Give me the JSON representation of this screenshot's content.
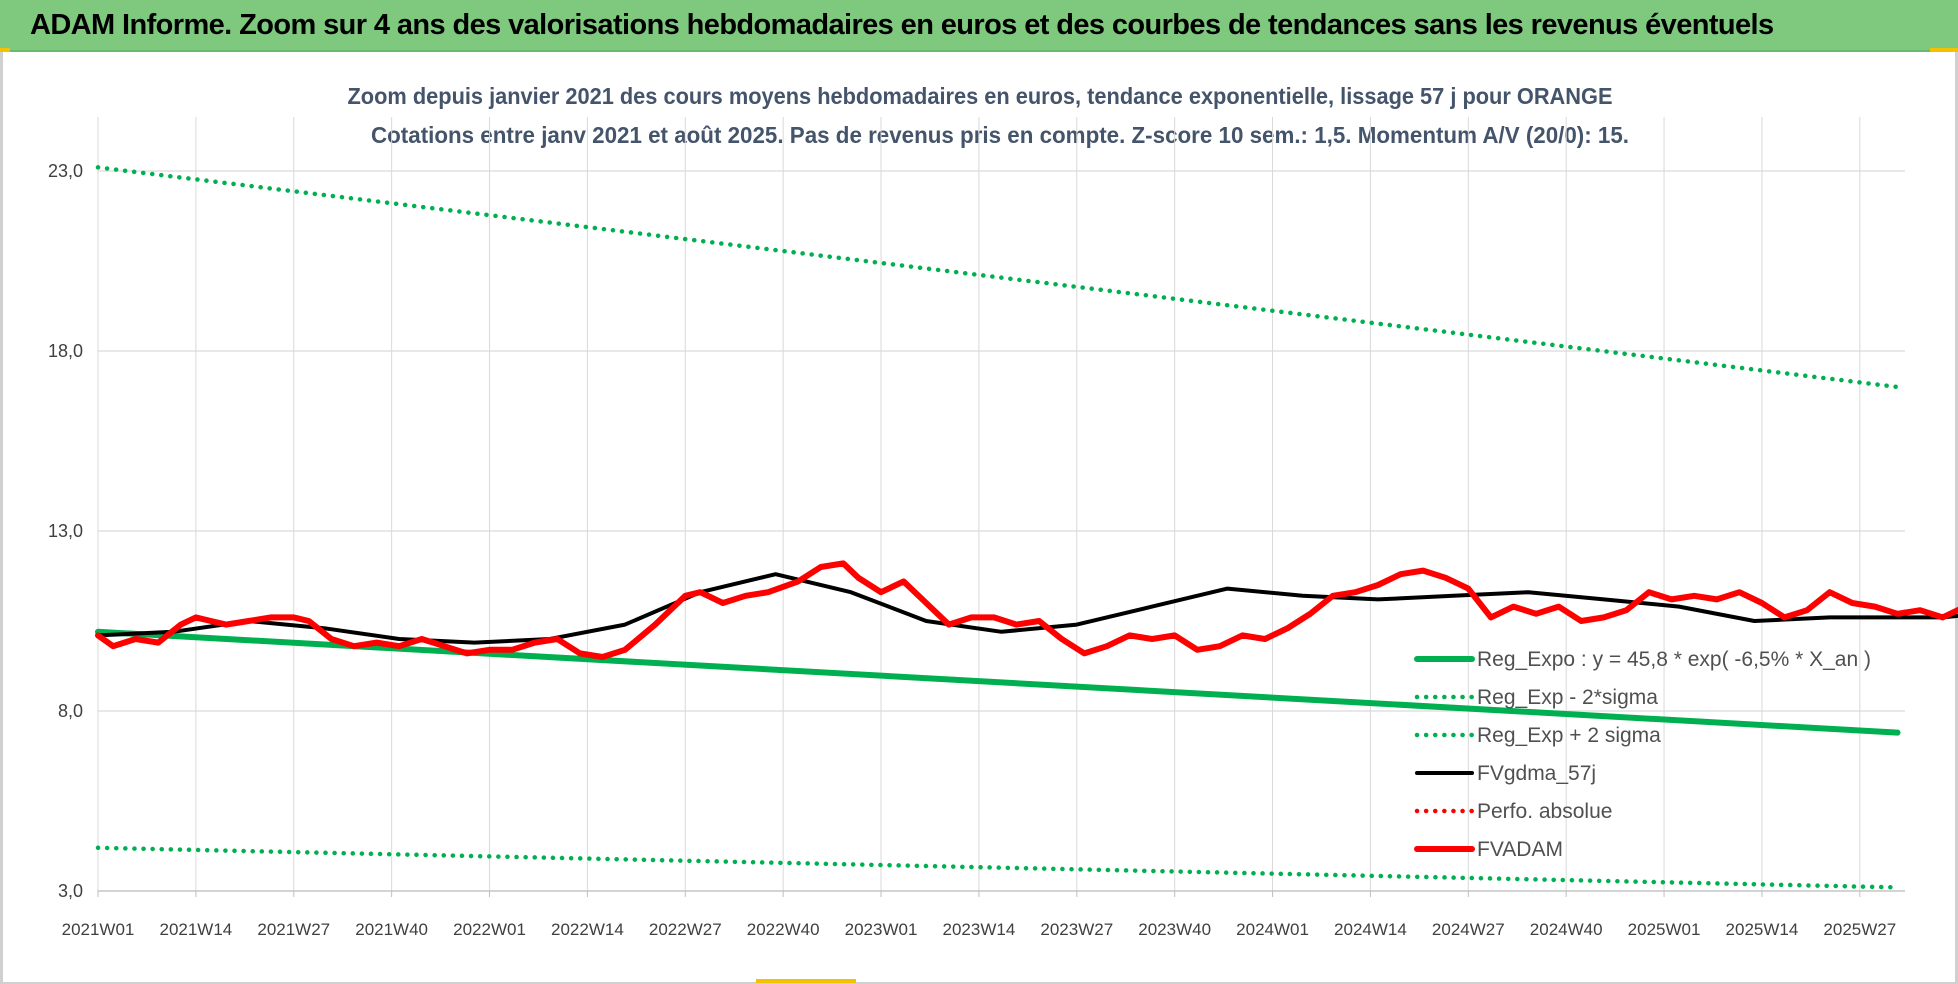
{
  "banner": {
    "title": "ADAM Informe. Zoom sur 4 ans des valorisations hebdomadaires en euros et des courbes de tendances sans les revenus éventuels"
  },
  "colors": {
    "banner_bg": "#7fc97f",
    "green": "#00b050",
    "black": "#000000",
    "red": "#ff0000",
    "subtitle": "#44546a",
    "grid": "#d9d9d9"
  },
  "chart_data": {
    "type": "line",
    "title_line1": "Zoom depuis janvier 2021 des cours moyens hebdomadaires en euros, tendance exponentielle, lissage 57 j pour ORANGE",
    "title_line2": "Cotations entre janv 2021 et août 2025.  Pas de revenus pris en compte. Z-score 10 sem.: 1,5. Momentum A/V (20/0): 15.",
    "x_tick_labels": [
      "2021W01",
      "2021W14",
      "2021W27",
      "2021W40",
      "2022W01",
      "2022W14",
      "2022W27",
      "2022W40",
      "2023W01",
      "2023W14",
      "2023W27",
      "2023W40",
      "2024W01",
      "2024W14",
      "2024W27",
      "2024W40",
      "2025W01",
      "2025W14",
      "2025W27"
    ],
    "y_ticks": [
      "3,0",
      "8,0",
      "13,0",
      "18,0",
      "23,0"
    ],
    "ylim": [
      3,
      24.5
    ],
    "x_weeks": 240,
    "grid": true,
    "legend_position": "bottom-right",
    "series": [
      {
        "name": "Reg_Expo : y = 45,8 * exp( -6,5% *  X_an )",
        "style": "solid",
        "color": "#00b050",
        "points": [
          [
            0,
            10.2
          ],
          [
            239,
            7.4
          ]
        ]
      },
      {
        "name": "Reg_Exp - 2*sigma",
        "style": "dotted",
        "color": "#00b050",
        "points": [
          [
            0,
            4.2
          ],
          [
            239,
            3.1
          ]
        ]
      },
      {
        "name": "Reg_Exp + 2 sigma",
        "style": "dotted",
        "color": "#00b050",
        "points": [
          [
            0,
            23.1
          ],
          [
            239,
            17.0
          ]
        ]
      },
      {
        "name": "FVgdma_57j",
        "style": "solid",
        "color": "#000000",
        "points": [
          [
            0,
            10.1
          ],
          [
            10,
            10.2
          ],
          [
            20,
            10.5
          ],
          [
            30,
            10.3
          ],
          [
            40,
            10.0
          ],
          [
            50,
            9.9
          ],
          [
            60,
            10.0
          ],
          [
            70,
            10.4
          ],
          [
            80,
            11.3
          ],
          [
            90,
            11.8
          ],
          [
            100,
            11.3
          ],
          [
            110,
            10.5
          ],
          [
            120,
            10.2
          ],
          [
            130,
            10.4
          ],
          [
            140,
            10.9
          ],
          [
            150,
            11.4
          ],
          [
            160,
            11.2
          ],
          [
            170,
            11.1
          ],
          [
            180,
            11.2
          ],
          [
            190,
            11.3
          ],
          [
            200,
            11.1
          ],
          [
            210,
            10.9
          ],
          [
            220,
            10.5
          ],
          [
            230,
            10.6
          ],
          [
            245,
            10.6
          ],
          [
            255,
            10.8
          ],
          [
            260,
            11.3
          ],
          [
            265,
            11.9
          ],
          [
            272,
            12.6
          ],
          [
            279,
            12.9
          ]
        ]
      },
      {
        "name": "Perfo. absolue",
        "style": "dotted",
        "color": "#ff0000",
        "points": []
      },
      {
        "name": "FVADAM",
        "style": "solid",
        "color": "#ff0000",
        "points": [
          [
            0,
            10.1
          ],
          [
            2,
            9.8
          ],
          [
            5,
            10.0
          ],
          [
            8,
            9.9
          ],
          [
            11,
            10.4
          ],
          [
            13,
            10.6
          ],
          [
            15,
            10.5
          ],
          [
            17,
            10.4
          ],
          [
            20,
            10.5
          ],
          [
            23,
            10.6
          ],
          [
            26,
            10.6
          ],
          [
            28,
            10.5
          ],
          [
            31,
            10.0
          ],
          [
            34,
            9.8
          ],
          [
            37,
            9.9
          ],
          [
            40,
            9.8
          ],
          [
            43,
            10.0
          ],
          [
            46,
            9.8
          ],
          [
            49,
            9.6
          ],
          [
            52,
            9.7
          ],
          [
            55,
            9.7
          ],
          [
            58,
            9.9
          ],
          [
            61,
            10.0
          ],
          [
            64,
            9.6
          ],
          [
            67,
            9.5
          ],
          [
            70,
            9.7
          ],
          [
            74,
            10.4
          ],
          [
            78,
            11.2
          ],
          [
            80,
            11.3
          ],
          [
            83,
            11.0
          ],
          [
            86,
            11.2
          ],
          [
            89,
            11.3
          ],
          [
            93,
            11.6
          ],
          [
            96,
            12.0
          ],
          [
            99,
            12.1
          ],
          [
            101,
            11.7
          ],
          [
            104,
            11.3
          ],
          [
            107,
            11.6
          ],
          [
            110,
            11.0
          ],
          [
            113,
            10.4
          ],
          [
            116,
            10.6
          ],
          [
            119,
            10.6
          ],
          [
            122,
            10.4
          ],
          [
            125,
            10.5
          ],
          [
            128,
            10.0
          ],
          [
            131,
            9.6
          ],
          [
            134,
            9.8
          ],
          [
            137,
            10.1
          ],
          [
            140,
            10.0
          ],
          [
            143,
            10.1
          ],
          [
            146,
            9.7
          ],
          [
            149,
            9.8
          ],
          [
            152,
            10.1
          ],
          [
            155,
            10.0
          ],
          [
            158,
            10.3
          ],
          [
            161,
            10.7
          ],
          [
            164,
            11.2
          ],
          [
            167,
            11.3
          ],
          [
            170,
            11.5
          ],
          [
            173,
            11.8
          ],
          [
            176,
            11.9
          ],
          [
            179,
            11.7
          ],
          [
            182,
            11.4
          ],
          [
            185,
            10.6
          ],
          [
            188,
            10.9
          ],
          [
            191,
            10.7
          ],
          [
            194,
            10.9
          ],
          [
            197,
            10.5
          ],
          [
            200,
            10.6
          ],
          [
            203,
            10.8
          ],
          [
            206,
            11.3
          ],
          [
            209,
            11.1
          ],
          [
            212,
            11.2
          ],
          [
            215,
            11.1
          ],
          [
            218,
            11.3
          ],
          [
            221,
            11.0
          ],
          [
            224,
            10.6
          ],
          [
            227,
            10.8
          ],
          [
            230,
            11.3
          ],
          [
            233,
            11.0
          ],
          [
            236,
            10.9
          ],
          [
            239,
            10.7
          ],
          [
            242,
            10.8
          ],
          [
            245,
            10.6
          ],
          [
            248,
            10.9
          ],
          [
            251,
            10.7
          ],
          [
            254,
            10.8
          ],
          [
            257,
            10.4
          ],
          [
            260,
            10.5
          ]
        ]
      }
    ]
  }
}
